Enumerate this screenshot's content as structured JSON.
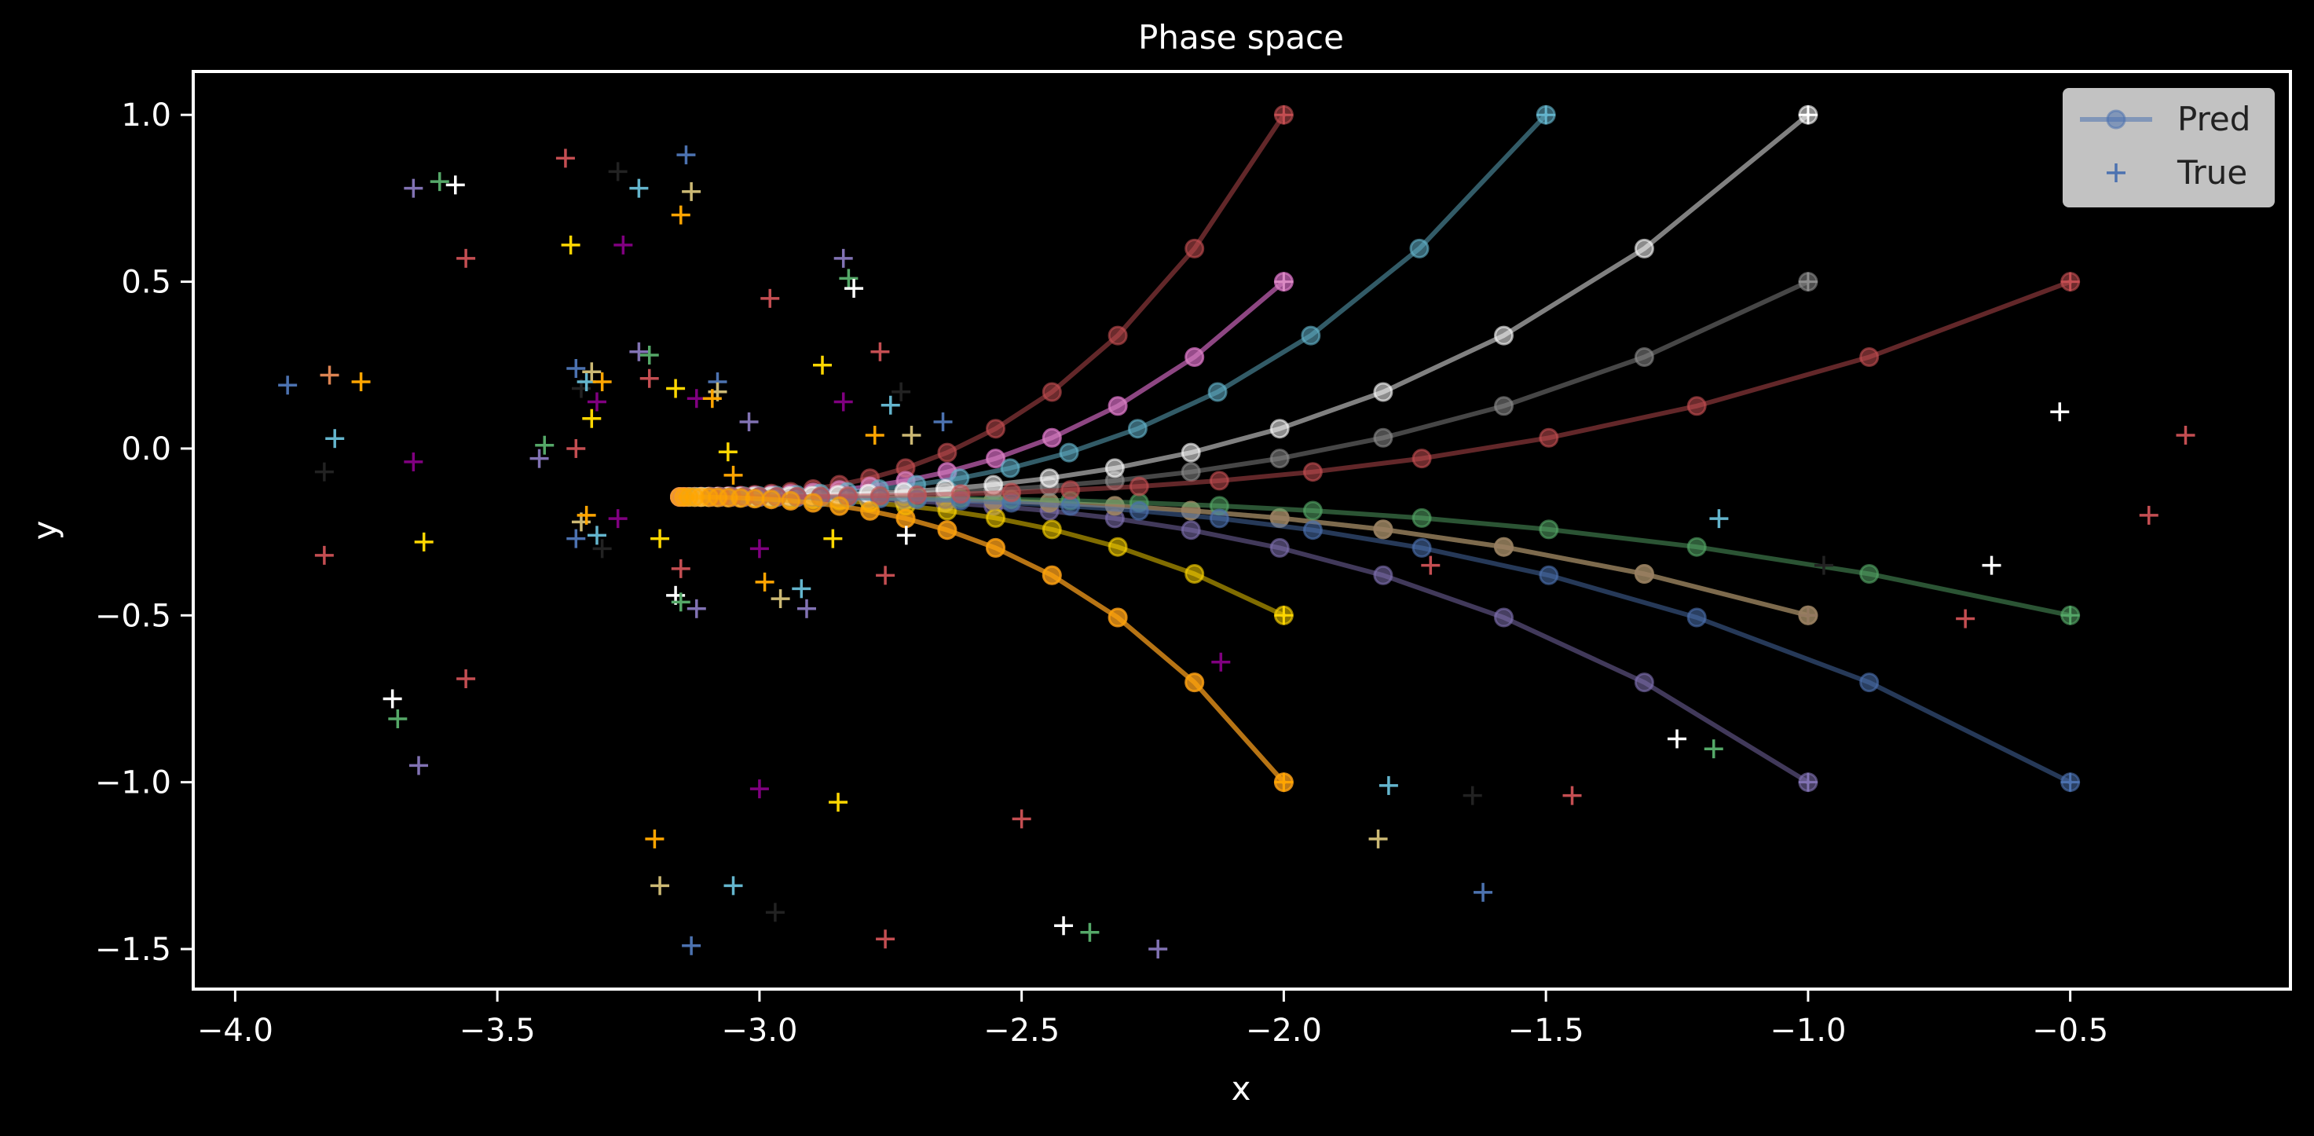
{
  "chart_data": {
    "type": "scatter",
    "title": "Phase space",
    "xlabel": "x",
    "ylabel": "y",
    "xlim": [
      -4.08,
      -0.08
    ],
    "ylim": [
      -1.62,
      1.13
    ],
    "x_ticks": [
      -4.0,
      -3.5,
      -3.0,
      -2.5,
      -2.0,
      -1.5,
      -1.0,
      -0.5
    ],
    "y_ticks": [
      -1.5,
      -1.0,
      -0.5,
      0.0,
      0.5,
      1.0
    ],
    "x_tick_labels": [
      "−4.0",
      "−3.5",
      "−3.0",
      "−2.5",
      "−2.0",
      "−1.5",
      "−1.0",
      "−0.5"
    ],
    "y_tick_labels": [
      "−1.5",
      "−1.0",
      "−0.5",
      "0.0",
      "0.5",
      "1.0"
    ],
    "grid": false,
    "legend": {
      "placement": "top-right",
      "entries": [
        {
          "label": "Pred",
          "marker": "line-circle",
          "color": "#4c72b0"
        },
        {
          "label": "True",
          "marker": "plus",
          "color": "#4c72b0"
        }
      ]
    },
    "pred_trajectories": [
      {
        "color": "#4c72b0",
        "start": [
          -0.5,
          -1.0
        ]
      },
      {
        "color": "#dd8452",
        "start": [
          -2.0,
          -1.0
        ]
      },
      {
        "color": "#55a868",
        "start": [
          -0.5,
          -0.5
        ]
      },
      {
        "color": "#c44e52",
        "start": [
          -2.0,
          1.0
        ]
      },
      {
        "color": "#8172b3",
        "start": [
          -1.0,
          -1.0
        ]
      },
      {
        "color": "#937860",
        "start": [
          -1.0,
          -0.5
        ]
      },
      {
        "color": "#da8bc3",
        "start": [
          -2.0,
          0.5
        ]
      },
      {
        "color": "#8c8c8c",
        "start": [
          -1.0,
          0.5
        ]
      },
      {
        "color": "#ccb974",
        "start": [
          -1.0,
          -0.5
        ]
      },
      {
        "color": "#64b5cd",
        "start": [
          -1.5,
          1.0
        ]
      },
      {
        "color": "#ffd700",
        "start": [
          -2.0,
          -0.5
        ]
      },
      {
        "color": "#ffffff",
        "start": [
          -1.0,
          1.0
        ]
      },
      {
        "color": "#c44e52",
        "start": [
          -0.5,
          0.5
        ]
      },
      {
        "color": "#800080",
        "start": [
          -2.0,
          0.5
        ]
      },
      {
        "color": "#ffa500",
        "start": [
          -2.0,
          -1.0
        ]
      }
    ],
    "pred_params": {
      "converge_point": [
        -3.2,
        -0.145
      ],
      "x_growth_per_step": 0.858,
      "y_decay_per_step": 0.65,
      "n_steps": 22,
      "drawn_order": [
        4,
        1,
        13,
        8,
        10,
        3,
        6,
        9,
        5,
        7,
        11,
        2,
        0,
        12,
        14
      ]
    },
    "true_points": [
      {
        "x": -3.9,
        "y": 0.19,
        "color": "#4c72b0"
      },
      {
        "x": -3.82,
        "y": 0.22,
        "color": "#dd8452"
      },
      {
        "x": -3.76,
        "y": 0.2,
        "color": "#ffa500"
      },
      {
        "x": -3.81,
        "y": 0.03,
        "color": "#64b5cd"
      },
      {
        "x": -3.83,
        "y": -0.07,
        "color": "#222222"
      },
      {
        "x": -3.83,
        "y": -0.32,
        "color": "#c44e52"
      },
      {
        "x": -3.66,
        "y": -0.04,
        "color": "#800080"
      },
      {
        "x": -3.64,
        "y": -0.28,
        "color": "#ffd700"
      },
      {
        "x": -3.7,
        "y": -0.75,
        "color": "#ffffff"
      },
      {
        "x": -3.69,
        "y": -0.81,
        "color": "#55a868"
      },
      {
        "x": -3.65,
        "y": -0.95,
        "color": "#8172b3"
      },
      {
        "x": -3.56,
        "y": -0.69,
        "color": "#c44e52"
      },
      {
        "x": -3.66,
        "y": 0.78,
        "color": "#8172b3"
      },
      {
        "x": -3.61,
        "y": 0.8,
        "color": "#55a868"
      },
      {
        "x": -3.58,
        "y": 0.79,
        "color": "#ffffff"
      },
      {
        "x": -3.37,
        "y": 0.87,
        "color": "#c44e52"
      },
      {
        "x": -3.27,
        "y": 0.83,
        "color": "#222222"
      },
      {
        "x": -3.23,
        "y": 0.78,
        "color": "#64b5cd"
      },
      {
        "x": -3.14,
        "y": 0.88,
        "color": "#4c72b0"
      },
      {
        "x": -3.13,
        "y": 0.77,
        "color": "#ccb974"
      },
      {
        "x": -3.15,
        "y": 0.7,
        "color": "#ffa500"
      },
      {
        "x": -3.56,
        "y": 0.57,
        "color": "#c44e52"
      },
      {
        "x": -3.36,
        "y": 0.61,
        "color": "#ffd700"
      },
      {
        "x": -3.26,
        "y": 0.61,
        "color": "#800080"
      },
      {
        "x": -3.35,
        "y": 0.24,
        "color": "#4c72b0"
      },
      {
        "x": -3.34,
        "y": 0.18,
        "color": "#222222"
      },
      {
        "x": -3.33,
        "y": 0.2,
        "color": "#64b5cd"
      },
      {
        "x": -3.32,
        "y": 0.23,
        "color": "#ccb974"
      },
      {
        "x": -3.3,
        "y": 0.2,
        "color": "#ffa500"
      },
      {
        "x": -3.31,
        "y": 0.14,
        "color": "#800080"
      },
      {
        "x": -3.32,
        "y": 0.09,
        "color": "#ffd700"
      },
      {
        "x": -3.41,
        "y": 0.01,
        "color": "#55a868"
      },
      {
        "x": -3.42,
        "y": -0.03,
        "color": "#8172b3"
      },
      {
        "x": -3.35,
        "y": 0.0,
        "color": "#c44e52"
      },
      {
        "x": -3.23,
        "y": 0.29,
        "color": "#8172b3"
      },
      {
        "x": -3.21,
        "y": 0.28,
        "color": "#55a868"
      },
      {
        "x": -3.21,
        "y": 0.21,
        "color": "#c44e52"
      },
      {
        "x": -3.16,
        "y": 0.18,
        "color": "#ffd700"
      },
      {
        "x": -3.12,
        "y": 0.15,
        "color": "#800080"
      },
      {
        "x": -3.08,
        "y": 0.2,
        "color": "#4c72b0"
      },
      {
        "x": -3.08,
        "y": 0.17,
        "color": "#ccb974"
      },
      {
        "x": -3.09,
        "y": 0.15,
        "color": "#ffa500"
      },
      {
        "x": -3.02,
        "y": 0.08,
        "color": "#8172b3"
      },
      {
        "x": -3.06,
        "y": -0.01,
        "color": "#ffd700"
      },
      {
        "x": -3.05,
        "y": -0.08,
        "color": "#ffa500"
      },
      {
        "x": -3.34,
        "y": -0.22,
        "color": "#ccb974"
      },
      {
        "x": -3.33,
        "y": -0.2,
        "color": "#ffa500"
      },
      {
        "x": -3.35,
        "y": -0.27,
        "color": "#4c72b0"
      },
      {
        "x": -3.31,
        "y": -0.26,
        "color": "#64b5cd"
      },
      {
        "x": -3.3,
        "y": -0.3,
        "color": "#222222"
      },
      {
        "x": -3.27,
        "y": -0.21,
        "color": "#800080"
      },
      {
        "x": -3.19,
        "y": -0.27,
        "color": "#ffd700"
      },
      {
        "x": -3.15,
        "y": -0.36,
        "color": "#c44e52"
      },
      {
        "x": -3.16,
        "y": -0.44,
        "color": "#ffffff"
      },
      {
        "x": -3.15,
        "y": -0.46,
        "color": "#55a868"
      },
      {
        "x": -3.12,
        "y": -0.48,
        "color": "#8172b3"
      },
      {
        "x": -2.98,
        "y": 0.45,
        "color": "#c44e52"
      },
      {
        "x": -2.88,
        "y": 0.25,
        "color": "#ffd700"
      },
      {
        "x": -2.84,
        "y": 0.57,
        "color": "#8172b3"
      },
      {
        "x": -2.83,
        "y": 0.51,
        "color": "#55a868"
      },
      {
        "x": -2.82,
        "y": 0.48,
        "color": "#ffffff"
      },
      {
        "x": -2.77,
        "y": 0.29,
        "color": "#c44e52"
      },
      {
        "x": -2.84,
        "y": 0.14,
        "color": "#800080"
      },
      {
        "x": -2.75,
        "y": 0.13,
        "color": "#64b5cd"
      },
      {
        "x": -2.73,
        "y": 0.17,
        "color": "#222222"
      },
      {
        "x": -2.78,
        "y": 0.04,
        "color": "#ffa500"
      },
      {
        "x": -2.71,
        "y": 0.04,
        "color": "#ccb974"
      },
      {
        "x": -2.65,
        "y": 0.08,
        "color": "#4c72b0"
      },
      {
        "x": -3.0,
        "y": -0.3,
        "color": "#800080"
      },
      {
        "x": -2.86,
        "y": -0.27,
        "color": "#ffd700"
      },
      {
        "x": -2.99,
        "y": -0.4,
        "color": "#ffa500"
      },
      {
        "x": -2.96,
        "y": -0.45,
        "color": "#ccb974"
      },
      {
        "x": -2.92,
        "y": -0.42,
        "color": "#64b5cd"
      },
      {
        "x": -2.91,
        "y": -0.48,
        "color": "#8172b3"
      },
      {
        "x": -2.76,
        "y": -0.38,
        "color": "#c44e52"
      },
      {
        "x": -2.72,
        "y": -0.26,
        "color": "#ffffff"
      },
      {
        "x": -3.0,
        "y": -1.02,
        "color": "#800080"
      },
      {
        "x": -2.85,
        "y": -1.06,
        "color": "#ffd700"
      },
      {
        "x": -3.2,
        "y": -1.17,
        "color": "#ffa500"
      },
      {
        "x": -3.19,
        "y": -1.31,
        "color": "#ccb974"
      },
      {
        "x": -3.05,
        "y": -1.31,
        "color": "#64b5cd"
      },
      {
        "x": -3.13,
        "y": -1.49,
        "color": "#4c72b0"
      },
      {
        "x": -2.97,
        "y": -1.39,
        "color": "#222222"
      },
      {
        "x": -2.76,
        "y": -1.47,
        "color": "#c44e52"
      },
      {
        "x": -2.5,
        "y": -1.11,
        "color": "#c44e52"
      },
      {
        "x": -2.42,
        "y": -1.43,
        "color": "#ffffff"
      },
      {
        "x": -2.37,
        "y": -1.45,
        "color": "#55a868"
      },
      {
        "x": -2.24,
        "y": -1.5,
        "color": "#8172b3"
      },
      {
        "x": -2.12,
        "y": -0.64,
        "color": "#800080"
      },
      {
        "x": -1.82,
        "y": -1.17,
        "color": "#ccb974"
      },
      {
        "x": -1.8,
        "y": -1.01,
        "color": "#64b5cd"
      },
      {
        "x": -1.64,
        "y": -1.04,
        "color": "#222222"
      },
      {
        "x": -1.62,
        "y": -1.33,
        "color": "#4c72b0"
      },
      {
        "x": -1.45,
        "y": -1.04,
        "color": "#c44e52"
      },
      {
        "x": -1.25,
        "y": -0.87,
        "color": "#ffffff"
      },
      {
        "x": -1.18,
        "y": -0.9,
        "color": "#55a868"
      },
      {
        "x": -1.72,
        "y": -0.35,
        "color": "#c44e52"
      },
      {
        "x": -1.17,
        "y": -0.21,
        "color": "#64b5cd"
      },
      {
        "x": -0.97,
        "y": -0.35,
        "color": "#222222"
      },
      {
        "x": -0.7,
        "y": -0.51,
        "color": "#c44e52"
      },
      {
        "x": -0.65,
        "y": -0.35,
        "color": "#ffffff"
      },
      {
        "x": -0.52,
        "y": 0.11,
        "color": "#ffffff"
      },
      {
        "x": -0.35,
        "y": -0.2,
        "color": "#c44e52"
      },
      {
        "x": -0.28,
        "y": 0.04,
        "color": "#c44e52"
      }
    ]
  }
}
